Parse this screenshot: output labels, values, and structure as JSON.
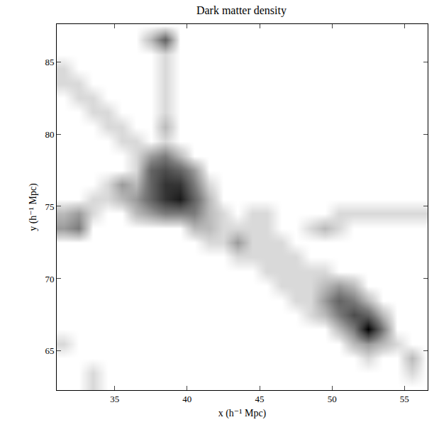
{
  "chart_data": {
    "type": "heatmap",
    "title": "Dark matter density",
    "xlabel": "x (h⁻¹ Mpc)",
    "ylabel": "y (h⁻¹ Mpc)",
    "xlim": [
      31,
      56.6
    ],
    "ylim": [
      62.3,
      87.6
    ],
    "xticks": [
      35,
      40,
      45,
      50,
      55
    ],
    "yticks": [
      65,
      70,
      75,
      80,
      85
    ],
    "grid": false,
    "zlim": [
      0,
      9
    ],
    "x": [
      31.5,
      32.5,
      33.5,
      34.5,
      35.5,
      36.5,
      37.5,
      38.5,
      39.5,
      40.5,
      41.5,
      42.5,
      43.5,
      44.5,
      45.5,
      46.5,
      47.5,
      48.5,
      49.5,
      50.5,
      51.5,
      52.5,
      53.5,
      54.5,
      55.5,
      56.5
    ],
    "y": [
      62.5,
      63.5,
      64.5,
      65.5,
      66.5,
      67.5,
      68.5,
      69.5,
      70.5,
      71.5,
      72.5,
      73.5,
      74.5,
      75.5,
      76.5,
      77.5,
      78.5,
      79.5,
      80.5,
      81.5,
      82.5,
      83.5,
      84.5,
      85.5,
      86.5,
      87.5
    ],
    "z": [
      [
        0,
        0,
        1,
        0,
        0,
        0,
        0,
        0,
        0,
        0,
        0,
        0,
        0,
        0,
        0,
        0,
        0,
        0,
        0,
        0,
        0,
        0,
        0,
        0,
        0,
        0
      ],
      [
        0,
        0,
        1,
        0,
        0,
        0,
        0,
        0,
        0,
        0,
        0,
        0,
        0,
        0,
        0,
        0,
        0,
        0,
        0,
        0,
        0,
        0,
        0,
        0,
        1,
        0
      ],
      [
        0,
        0,
        0,
        0,
        0,
        0,
        0,
        0,
        0,
        0,
        0,
        0,
        0,
        0,
        0,
        0,
        0,
        0,
        0,
        0,
        0,
        1,
        0,
        0,
        2,
        0
      ],
      [
        1,
        0,
        0,
        0,
        0,
        0,
        0,
        0,
        0,
        0,
        0,
        0,
        0,
        0,
        0,
        0,
        0,
        0,
        0,
        0,
        2,
        3,
        2,
        1,
        0,
        0
      ],
      [
        0,
        0,
        0,
        0,
        0,
        0,
        0,
        0,
        0,
        0,
        0,
        0,
        0,
        0,
        0,
        0,
        0,
        0,
        0,
        2,
        4,
        9,
        4,
        0,
        0,
        0
      ],
      [
        0,
        0,
        0,
        0,
        0,
        0,
        0,
        0,
        0,
        0,
        0,
        0,
        0,
        0,
        0,
        0,
        0,
        1,
        2,
        4,
        6,
        5,
        2,
        0,
        0,
        0
      ],
      [
        0,
        0,
        0,
        0,
        0,
        0,
        0,
        0,
        0,
        0,
        0,
        0,
        0,
        0,
        0,
        0,
        1,
        1,
        3,
        5,
        4,
        2,
        0,
        0,
        0,
        0
      ],
      [
        0,
        0,
        0,
        0,
        0,
        0,
        0,
        0,
        0,
        0,
        0,
        0,
        0,
        0,
        0,
        1,
        1,
        1,
        2,
        3,
        2,
        0,
        0,
        0,
        0,
        0
      ],
      [
        0,
        0,
        0,
        0,
        0,
        0,
        0,
        0,
        0,
        0,
        0,
        0,
        0,
        0,
        1,
        1,
        1,
        1,
        1,
        0,
        0,
        0,
        0,
        0,
        0,
        0
      ],
      [
        0,
        0,
        0,
        0,
        0,
        0,
        0,
        0,
        0,
        0,
        0,
        0,
        1,
        1,
        1,
        1,
        1,
        0,
        0,
        0,
        0,
        0,
        0,
        0,
        0,
        0
      ],
      [
        0,
        0,
        0,
        0,
        0,
        0,
        0,
        0,
        0,
        0,
        1,
        1,
        3,
        1,
        1,
        1,
        0,
        0,
        0,
        0,
        0,
        0,
        0,
        0,
        0,
        0
      ],
      [
        3,
        4,
        0,
        0,
        0,
        0,
        0,
        0,
        0,
        2,
        2,
        1,
        1,
        1,
        1,
        0,
        0,
        1,
        2,
        1,
        0,
        0,
        0,
        0,
        0,
        0
      ],
      [
        2,
        3,
        1,
        0,
        0,
        2,
        3,
        4,
        4,
        4,
        2,
        1,
        0,
        1,
        1,
        0,
        0,
        0,
        0,
        1,
        1,
        1,
        1,
        1,
        1,
        1
      ],
      [
        0,
        0,
        1,
        1,
        2,
        3,
        5,
        7,
        8,
        5,
        2,
        0,
        0,
        0,
        0,
        0,
        0,
        0,
        0,
        0,
        0,
        0,
        0,
        0,
        0,
        0
      ],
      [
        0,
        0,
        0,
        1,
        3,
        2,
        5,
        7,
        7,
        4,
        1,
        0,
        0,
        0,
        0,
        0,
        0,
        0,
        0,
        0,
        0,
        0,
        0,
        0,
        0,
        0
      ],
      [
        0,
        0,
        0,
        0,
        0,
        1,
        5,
        6,
        5,
        3,
        0,
        0,
        0,
        0,
        0,
        0,
        0,
        0,
        0,
        0,
        0,
        0,
        0,
        0,
        0,
        0
      ],
      [
        0,
        0,
        0,
        0,
        0,
        1,
        3,
        4,
        2,
        0,
        0,
        0,
        0,
        0,
        0,
        0,
        0,
        0,
        0,
        0,
        0,
        0,
        0,
        0,
        0,
        0
      ],
      [
        0,
        0,
        0,
        0,
        1,
        1,
        0,
        1,
        0,
        0,
        0,
        0,
        0,
        0,
        0,
        0,
        0,
        0,
        0,
        0,
        0,
        0,
        0,
        0,
        0,
        0
      ],
      [
        0,
        0,
        0,
        1,
        1,
        0,
        0,
        2,
        0,
        0,
        0,
        0,
        0,
        0,
        0,
        0,
        0,
        0,
        0,
        0,
        0,
        0,
        0,
        0,
        0,
        0
      ],
      [
        0,
        0,
        1,
        1,
        0,
        0,
        0,
        1,
        0,
        0,
        0,
        0,
        0,
        0,
        0,
        0,
        0,
        0,
        0,
        0,
        0,
        0,
        0,
        0,
        0,
        0
      ],
      [
        0,
        1,
        1,
        0,
        0,
        0,
        0,
        1,
        0,
        0,
        0,
        0,
        0,
        0,
        0,
        0,
        0,
        0,
        0,
        0,
        0,
        0,
        0,
        0,
        0,
        0
      ],
      [
        1,
        1,
        0,
        0,
        0,
        0,
        0,
        1,
        0,
        0,
        0,
        0,
        0,
        0,
        0,
        0,
        0,
        0,
        0,
        0,
        0,
        0,
        0,
        0,
        0,
        0
      ],
      [
        1,
        0,
        0,
        0,
        0,
        0,
        0,
        1,
        0,
        0,
        0,
        0,
        0,
        0,
        0,
        0,
        0,
        0,
        0,
        0,
        0,
        0,
        0,
        0,
        0,
        0
      ],
      [
        0,
        0,
        0,
        0,
        0,
        0,
        0,
        1,
        0,
        0,
        0,
        0,
        0,
        0,
        0,
        0,
        0,
        0,
        0,
        0,
        0,
        0,
        0,
        0,
        0,
        0
      ],
      [
        0,
        0,
        0,
        0,
        0,
        0,
        2,
        5,
        0,
        0,
        0,
        0,
        0,
        0,
        0,
        0,
        0,
        0,
        0,
        0,
        0,
        0,
        0,
        0,
        0,
        0
      ],
      [
        0,
        0,
        0,
        0,
        0,
        0,
        0,
        0,
        0,
        0,
        0,
        0,
        0,
        0,
        0,
        0,
        0,
        0,
        0,
        0,
        0,
        0,
        0,
        0,
        0,
        0
      ]
    ]
  }
}
